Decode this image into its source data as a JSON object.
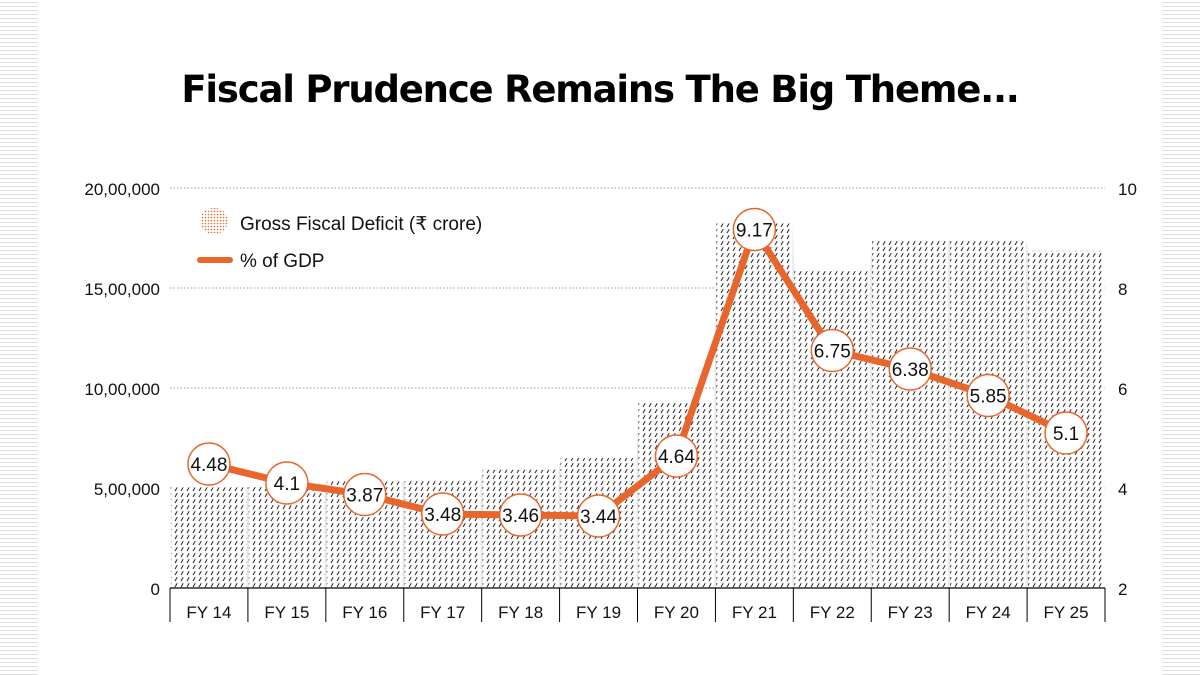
{
  "title": "Fiscal Prudence Remains The Big Theme...",
  "colors": {
    "line": "#e8662c",
    "bar_bg": "#e6e6e6",
    "bar_hatch": "#222222",
    "grid": "#9a9a9a",
    "marker_stroke": "#e8662c",
    "marker_fill": "#ffffff"
  },
  "chart_data": {
    "type": "bar",
    "categories": [
      "FY 14",
      "FY 15",
      "FY 16",
      "FY 17",
      "FY 18",
      "FY 19",
      "FY 20",
      "FY 21",
      "FY 22",
      "FY 23",
      "FY 24",
      "FY 25"
    ],
    "series": [
      {
        "name": "Gross Fiscal Deficit (₹ crore)",
        "type": "bar",
        "axis": "left",
        "values": [
          502858,
          510725,
          532791,
          535618,
          591062,
          649418,
          933651,
          1822580,
          1591090,
          1737755,
          1740000,
          1686000
        ]
      },
      {
        "name": "% of GDP",
        "type": "line",
        "axis": "right",
        "values": [
          4.48,
          4.1,
          3.87,
          3.48,
          3.46,
          3.44,
          4.64,
          9.17,
          6.75,
          6.38,
          5.85,
          5.1
        ],
        "labels": [
          "4.48",
          "4.1",
          "3.87",
          "3.48",
          "3.46",
          "3.44",
          "4.64",
          "9.17",
          "6.75",
          "6.38",
          "5.85",
          "5.1"
        ]
      }
    ],
    "left_axis": {
      "ylim": [
        0,
        2000000
      ],
      "ticks": [
        0,
        500000,
        1000000,
        1500000,
        2000000
      ],
      "tick_labels": [
        "0",
        "5,00,000",
        "10,00,000",
        "15,00,000",
        "20,00,000"
      ]
    },
    "right_axis": {
      "ylim": [
        2,
        10
      ],
      "ticks": [
        2,
        4,
        6,
        8,
        10
      ],
      "tick_labels": [
        "2",
        "4",
        "6",
        "8",
        "10"
      ]
    },
    "grid": "horizontal-dotted",
    "legend": "top-left"
  }
}
